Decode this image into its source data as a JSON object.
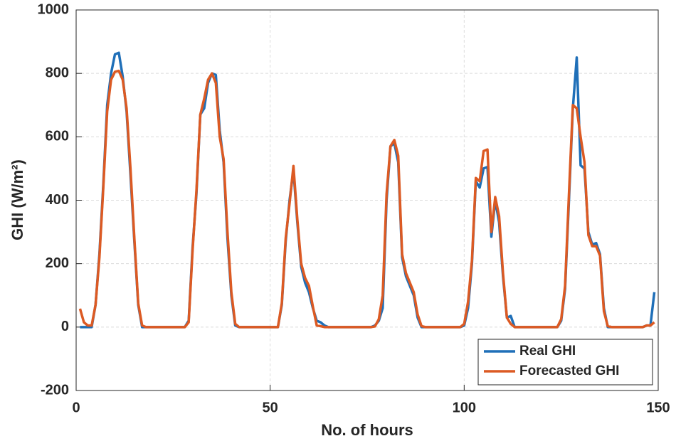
{
  "chart_data": {
    "type": "line",
    "xlabel": "No. of hours",
    "ylabel": "GHI (W/m²)",
    "x": [
      1,
      2,
      3,
      4,
      5,
      6,
      7,
      8,
      9,
      10,
      11,
      12,
      13,
      14,
      15,
      16,
      17,
      18,
      19,
      20,
      21,
      22,
      23,
      24,
      25,
      26,
      27,
      28,
      29,
      30,
      31,
      32,
      33,
      34,
      35,
      36,
      37,
      38,
      39,
      40,
      41,
      42,
      43,
      44,
      45,
      46,
      47,
      48,
      49,
      50,
      51,
      52,
      53,
      54,
      55,
      56,
      57,
      58,
      59,
      60,
      61,
      62,
      63,
      64,
      65,
      66,
      67,
      68,
      69,
      70,
      71,
      72,
      73,
      74,
      75,
      76,
      77,
      78,
      79,
      80,
      81,
      82,
      83,
      84,
      85,
      86,
      87,
      88,
      89,
      90,
      91,
      92,
      93,
      94,
      95,
      96,
      97,
      98,
      99,
      100,
      101,
      102,
      103,
      104,
      105,
      106,
      107,
      108,
      109,
      110,
      111,
      112,
      113,
      114,
      115,
      116,
      117,
      118,
      119,
      120,
      121,
      122,
      123,
      124,
      125,
      126,
      127,
      128,
      129,
      130,
      131,
      132,
      133,
      134,
      135,
      136,
      137,
      138,
      139,
      140,
      141,
      142,
      143,
      144,
      145,
      146,
      147,
      148,
      149
    ],
    "series": [
      {
        "name": "Real GHI",
        "color": "#1f6fb8",
        "values": [
          0,
          0,
          0,
          0,
          70,
          230,
          450,
          700,
          800,
          860,
          865,
          790,
          680,
          480,
          270,
          70,
          0,
          0,
          0,
          0,
          0,
          0,
          0,
          0,
          0,
          0,
          0,
          0,
          20,
          250,
          420,
          670,
          690,
          770,
          800,
          795,
          620,
          520,
          280,
          100,
          5,
          0,
          0,
          0,
          0,
          0,
          0,
          0,
          0,
          0,
          0,
          0,
          70,
          270,
          400,
          495,
          330,
          190,
          140,
          110,
          60,
          20,
          15,
          5,
          0,
          0,
          0,
          0,
          0,
          0,
          0,
          0,
          0,
          0,
          0,
          0,
          5,
          20,
          60,
          400,
          570,
          580,
          520,
          220,
          160,
          130,
          100,
          30,
          0,
          0,
          0,
          0,
          0,
          0,
          0,
          0,
          0,
          0,
          0,
          5,
          60,
          200,
          460,
          440,
          500,
          505,
          285,
          400,
          330,
          160,
          30,
          35,
          0,
          0,
          0,
          0,
          0,
          0,
          0,
          0,
          0,
          0,
          0,
          0,
          20,
          120,
          400,
          690,
          850,
          510,
          500,
          300,
          260,
          265,
          230,
          60,
          0,
          0,
          0,
          0,
          0,
          0,
          0,
          0,
          0,
          0,
          5,
          5,
          110
        ]
      },
      {
        "name": "Forecasted GHI",
        "color": "#dc5a23",
        "values": [
          58,
          15,
          5,
          5,
          70,
          220,
          440,
          680,
          780,
          805,
          808,
          780,
          690,
          500,
          280,
          75,
          5,
          0,
          0,
          0,
          0,
          0,
          0,
          0,
          0,
          0,
          0,
          0,
          15,
          240,
          430,
          670,
          720,
          780,
          800,
          770,
          600,
          530,
          300,
          110,
          10,
          0,
          0,
          0,
          0,
          0,
          0,
          0,
          0,
          0,
          0,
          0,
          75,
          280,
          390,
          508,
          340,
          200,
          155,
          130,
          65,
          5,
          3,
          0,
          0,
          0,
          0,
          0,
          0,
          0,
          0,
          0,
          0,
          0,
          0,
          0,
          2,
          25,
          100,
          420,
          570,
          590,
          540,
          230,
          170,
          140,
          110,
          40,
          3,
          0,
          0,
          0,
          0,
          0,
          0,
          0,
          0,
          0,
          0,
          10,
          80,
          210,
          470,
          460,
          555,
          560,
          300,
          410,
          350,
          170,
          30,
          10,
          0,
          0,
          0,
          0,
          0,
          0,
          0,
          0,
          0,
          0,
          0,
          0,
          25,
          130,
          420,
          700,
          690,
          600,
          520,
          290,
          255,
          255,
          225,
          50,
          3,
          0,
          0,
          0,
          0,
          0,
          0,
          0,
          0,
          0,
          5,
          5,
          15
        ]
      }
    ],
    "xlim": [
      0,
      150
    ],
    "xticks": [
      0,
      50,
      100,
      150
    ],
    "ylim": [
      -200,
      1000
    ],
    "yticks": [
      -200,
      0,
      200,
      400,
      600,
      800,
      1000
    ],
    "grid": true,
    "legend": "lower right"
  }
}
